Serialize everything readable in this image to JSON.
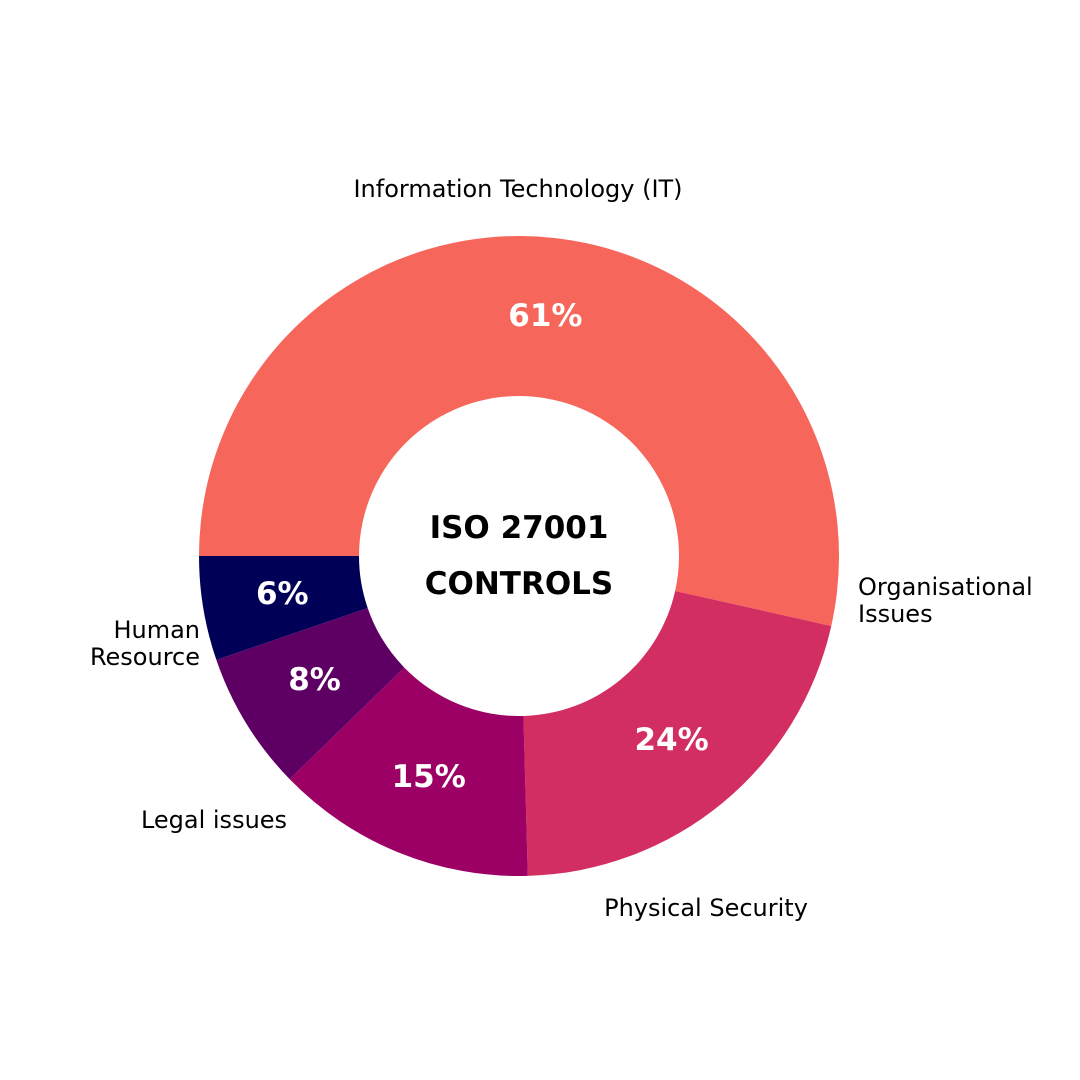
{
  "chart_data": {
    "type": "donut",
    "title": "ISO 27001 CONTROLS",
    "categories": [
      "Information Technology (IT)",
      "Organisational Issues",
      "Physical Security",
      "Legal issues",
      "Human Resource"
    ],
    "values": [
      61,
      24,
      15,
      8,
      6
    ],
    "value_labels": [
      "61%",
      "24%",
      "15%",
      "8%",
      "6%"
    ],
    "colors": [
      "#f7665b",
      "#d32e62",
      "#9c0064",
      "#5e0063",
      "#000057"
    ]
  }
}
